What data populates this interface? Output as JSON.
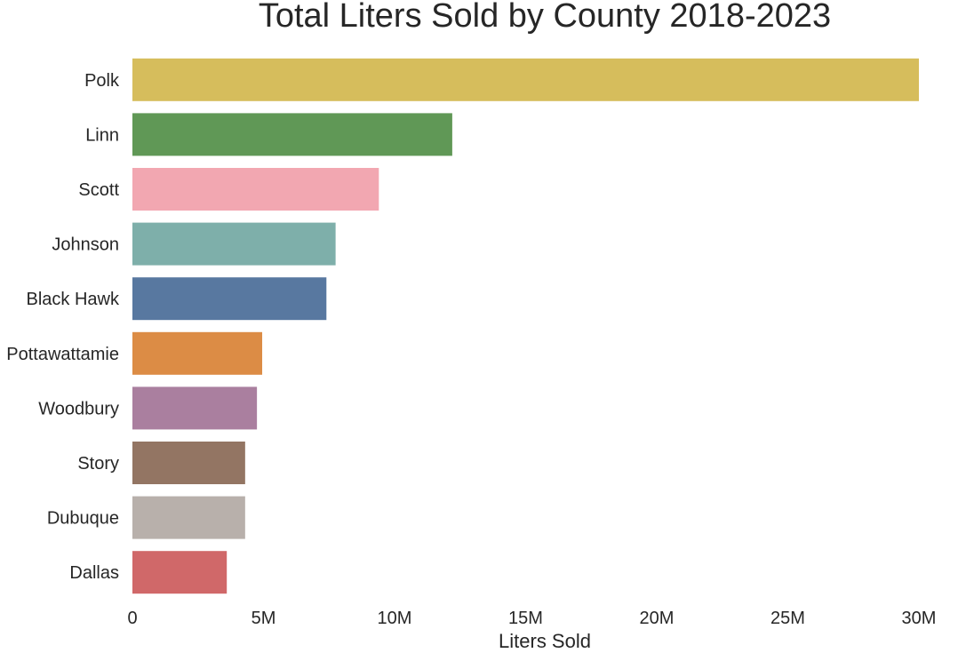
{
  "chart_data": {
    "type": "bar",
    "orientation": "horizontal",
    "title": "Total Liters Sold by County 2018-2023",
    "xlabel": "Liters Sold",
    "ylabel": "",
    "categories": [
      "Polk",
      "Linn",
      "Scott",
      "Johnson",
      "Black Hawk",
      "Pottawattamie",
      "Woodbury",
      "Story",
      "Dubuque",
      "Dallas"
    ],
    "values": [
      30000000,
      12200000,
      9400000,
      7750000,
      7400000,
      4950000,
      4750000,
      4300000,
      4300000,
      3600000
    ],
    "colors": [
      "#d6bd5c",
      "#609856",
      "#f2a7b1",
      "#7eafaa",
      "#5878a0",
      "#dc8c45",
      "#aa7f9f",
      "#937563",
      "#b8b0ab",
      "#d06869"
    ],
    "xlim": [
      0,
      30000000
    ],
    "xticks": [
      0,
      5000000,
      10000000,
      15000000,
      20000000,
      25000000,
      30000000
    ],
    "xtick_labels": [
      "0",
      "5M",
      "10M",
      "15M",
      "20M",
      "25M",
      "30M"
    ],
    "grid": false,
    "legend": "none"
  }
}
